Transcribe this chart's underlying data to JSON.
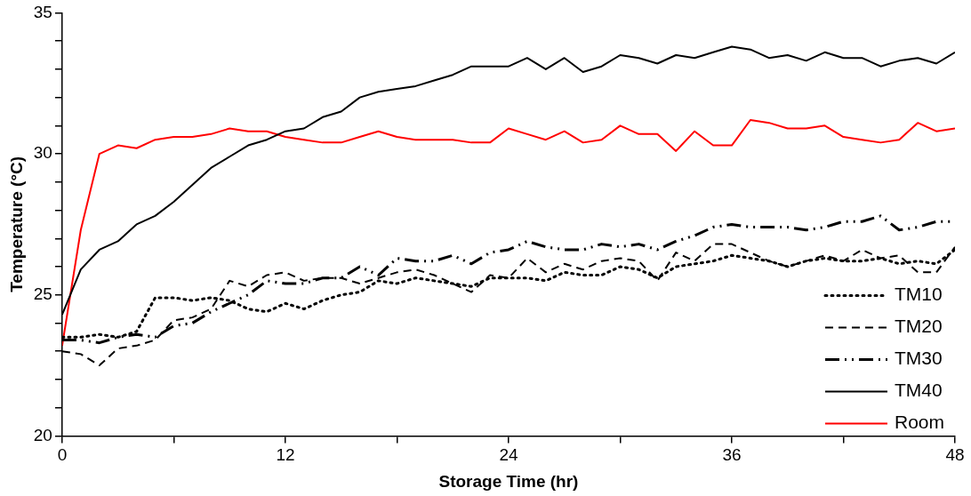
{
  "chart_data": {
    "type": "line",
    "xlabel": "Storage Time (hr)",
    "ylabel": "Temperature (°C)",
    "x": [
      0,
      1,
      2,
      3,
      4,
      5,
      6,
      7,
      8,
      9,
      10,
      11,
      12,
      13,
      14,
      15,
      16,
      17,
      18,
      19,
      20,
      21,
      22,
      23,
      24,
      25,
      26,
      27,
      28,
      29,
      30,
      31,
      32,
      33,
      34,
      35,
      36,
      37,
      38,
      39,
      40,
      41,
      42,
      43,
      44,
      45,
      46,
      47,
      48
    ],
    "xlim": [
      0,
      48
    ],
    "xticks": [
      0,
      {
        "value": 6,
        "label": null
      },
      12,
      {
        "value": 18,
        "label": null
      },
      24,
      {
        "value": 30,
        "label": null
      },
      36,
      {
        "value": 42,
        "label": null
      },
      48
    ],
    "ylim": [
      20,
      35
    ],
    "yticks": [
      20,
      {
        "value": 21,
        "label": null
      },
      {
        "value": 22,
        "label": null
      },
      {
        "value": 23,
        "label": null
      },
      {
        "value": 24,
        "label": null
      },
      25,
      {
        "value": 26,
        "label": null
      },
      {
        "value": 27,
        "label": null
      },
      {
        "value": 28,
        "label": null
      },
      {
        "value": 29,
        "label": null
      },
      30,
      {
        "value": 31,
        "label": null
      },
      {
        "value": 32,
        "label": null
      },
      {
        "value": 33,
        "label": null
      },
      {
        "value": 34,
        "label": null
      },
      35
    ],
    "grid": false,
    "legend": "bottom right",
    "marker": "none",
    "series": [
      {
        "name": "TM10",
        "color": "#000000",
        "line_style": "dotted",
        "values": [
          23.5,
          23.5,
          23.6,
          23.5,
          23.7,
          24.9,
          24.9,
          24.8,
          24.9,
          24.8,
          24.5,
          24.4,
          24.7,
          24.5,
          24.8,
          25.0,
          25.1,
          25.5,
          25.4,
          25.6,
          25.5,
          25.4,
          25.3,
          25.6,
          25.6,
          25.6,
          25.5,
          25.8,
          25.7,
          25.7,
          26.0,
          25.9,
          25.6,
          26.0,
          26.1,
          26.2,
          26.4,
          26.3,
          26.2,
          26.0,
          26.2,
          26.3,
          26.2,
          26.2,
          26.3,
          26.1,
          26.2,
          26.1,
          26.6
        ]
      },
      {
        "name": "TM20",
        "color": "#000000",
        "line_style": "dashed",
        "values": [
          23.0,
          22.9,
          22.5,
          23.1,
          23.2,
          23.4,
          24.1,
          24.2,
          24.5,
          25.5,
          25.3,
          25.7,
          25.8,
          25.5,
          25.6,
          25.6,
          25.4,
          25.6,
          25.8,
          25.9,
          25.7,
          25.4,
          25.1,
          25.7,
          25.6,
          26.3,
          25.8,
          26.1,
          25.9,
          26.2,
          26.3,
          26.2,
          25.5,
          26.5,
          26.2,
          26.8,
          26.8,
          26.5,
          26.2,
          26.0,
          26.2,
          26.4,
          26.2,
          26.6,
          26.3,
          26.4,
          25.8,
          25.8,
          26.7
        ]
      },
      {
        "name": "TM30",
        "color": "#000000",
        "line_style": "dashdotdot",
        "values": [
          23.4,
          23.4,
          23.3,
          23.5,
          23.6,
          23.5,
          23.9,
          24.0,
          24.4,
          24.7,
          25.0,
          25.5,
          25.4,
          25.4,
          25.6,
          25.6,
          26.0,
          25.7,
          26.3,
          26.2,
          26.2,
          26.4,
          26.1,
          26.5,
          26.6,
          26.9,
          26.7,
          26.6,
          26.6,
          26.8,
          26.7,
          26.8,
          26.6,
          26.9,
          27.1,
          27.4,
          27.5,
          27.4,
          27.4,
          27.4,
          27.3,
          27.4,
          27.6,
          27.6,
          27.8,
          27.3,
          27.4,
          27.6,
          27.6
        ]
      },
      {
        "name": "TM40",
        "color": "#000000",
        "line_style": "solid",
        "values": [
          24.3,
          25.9,
          26.6,
          26.9,
          27.5,
          27.8,
          28.3,
          28.9,
          29.5,
          29.9,
          30.3,
          30.5,
          30.8,
          30.9,
          31.3,
          31.5,
          32.0,
          32.2,
          32.3,
          32.4,
          32.6,
          32.8,
          33.1,
          33.1,
          33.1,
          33.4,
          33.0,
          33.4,
          32.9,
          33.1,
          33.5,
          33.4,
          33.2,
          33.5,
          33.4,
          33.6,
          33.8,
          33.7,
          33.4,
          33.5,
          33.3,
          33.6,
          33.4,
          33.4,
          33.1,
          33.3,
          33.4,
          33.2,
          33.6
        ]
      },
      {
        "name": "Room",
        "color": "#ff0000",
        "line_style": "solid",
        "values": [
          23.2,
          27.3,
          30.0,
          30.3,
          30.2,
          30.5,
          30.6,
          30.6,
          30.7,
          30.9,
          30.8,
          30.8,
          30.6,
          30.5,
          30.4,
          30.4,
          30.6,
          30.8,
          30.6,
          30.5,
          30.5,
          30.5,
          30.4,
          30.4,
          30.9,
          30.7,
          30.5,
          30.8,
          30.4,
          30.5,
          31.0,
          30.7,
          30.7,
          30.1,
          30.8,
          30.3,
          30.3,
          31.2,
          31.1,
          30.9,
          30.9,
          31.0,
          30.6,
          30.5,
          30.4,
          30.5,
          31.1,
          30.8,
          30.9
        ]
      }
    ]
  }
}
